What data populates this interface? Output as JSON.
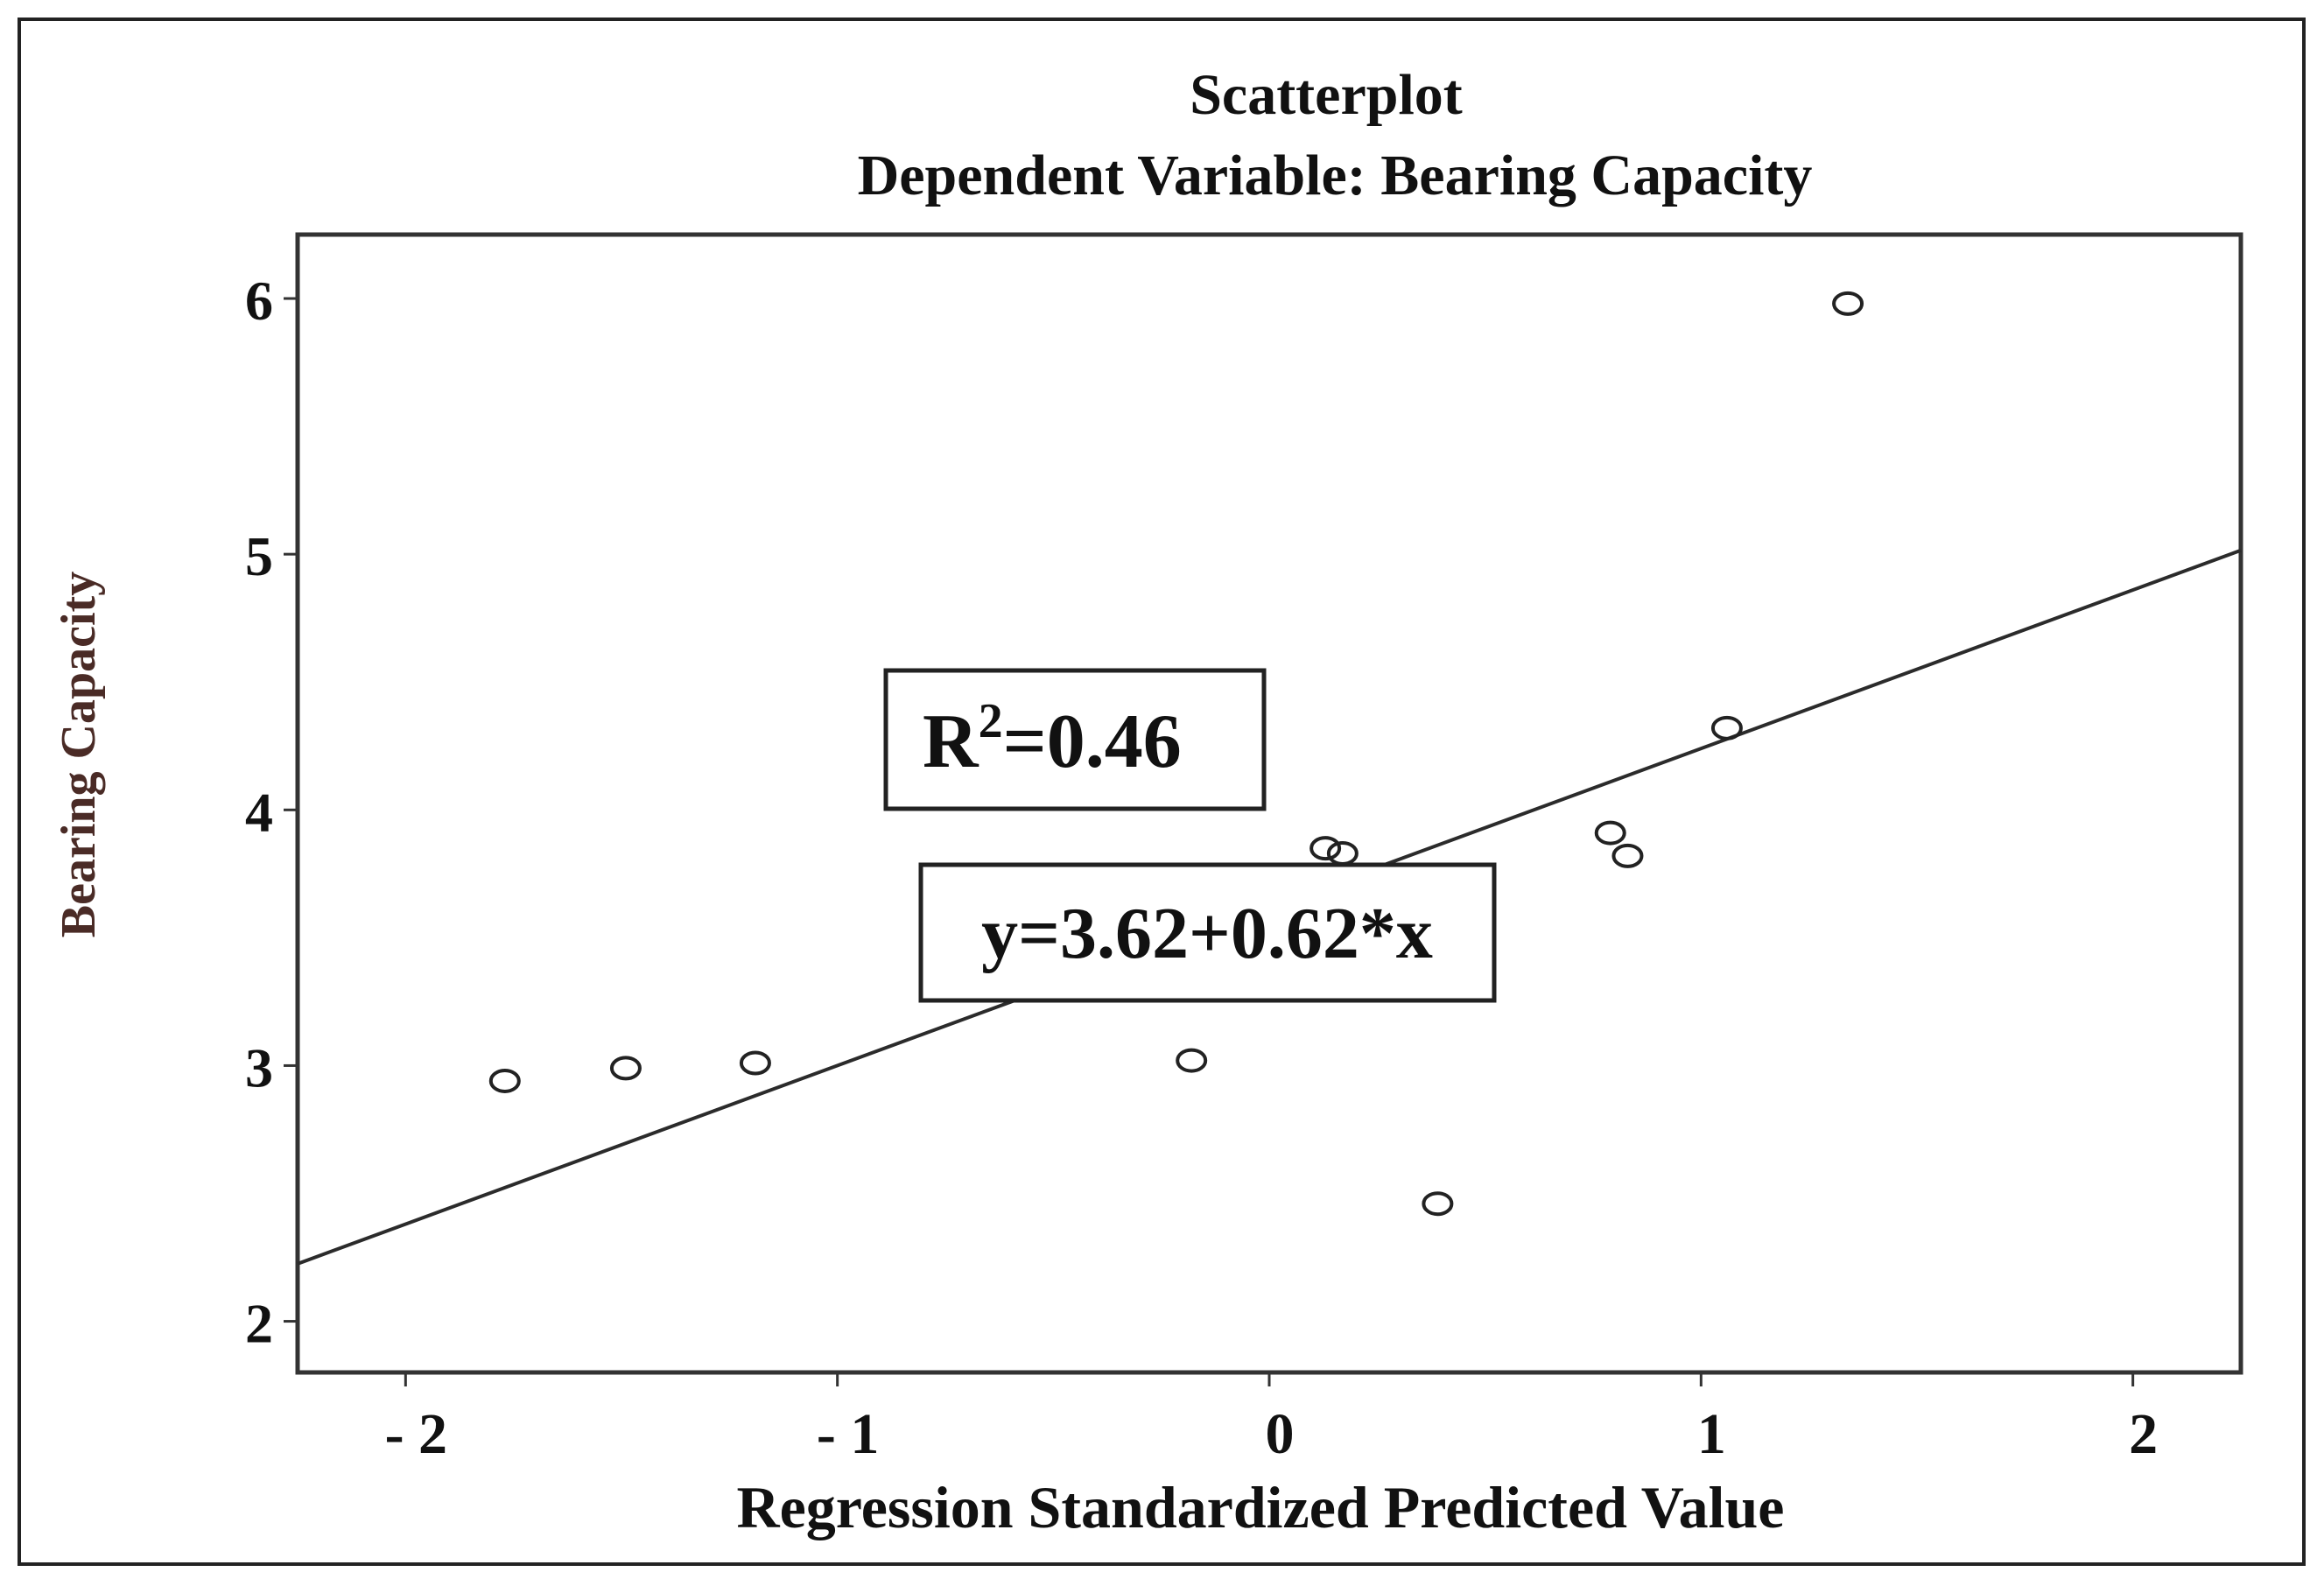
{
  "chart_data": {
    "type": "scatter",
    "title": "Scatterplot",
    "subtitle": "Dependent Variable: Bearing Capacity",
    "xlabel": "Regression Standardized Predicted Value",
    "ylabel": "Bearing Capacity",
    "xlim": [
      -2.25,
      2.25
    ],
    "ylim": [
      1.8,
      6.25
    ],
    "xticks": [
      -2,
      -1,
      0,
      1,
      2
    ],
    "xtick_labels": [
      "- 2",
      "- 1",
      "0",
      "1",
      "2"
    ],
    "yticks": [
      2,
      3,
      4,
      5,
      6
    ],
    "ytick_labels": [
      "2",
      "3",
      "4",
      "5",
      "6"
    ],
    "grid": false,
    "points": [
      {
        "x": -1.77,
        "y": 2.94
      },
      {
        "x": -1.49,
        "y": 2.99
      },
      {
        "x": -1.19,
        "y": 3.01
      },
      {
        "x": -0.18,
        "y": 3.02
      },
      {
        "x": 0.13,
        "y": 3.85
      },
      {
        "x": 0.17,
        "y": 3.83
      },
      {
        "x": 0.39,
        "y": 2.46
      },
      {
        "x": 0.79,
        "y": 3.91
      },
      {
        "x": 0.83,
        "y": 3.82
      },
      {
        "x": 1.06,
        "y": 4.32
      },
      {
        "x": 1.34,
        "y": 5.98
      }
    ],
    "fit_line": {
      "intercept": 3.62,
      "slope": 0.62
    },
    "annotations": {
      "r2_label": "R",
      "r2_sup": "2",
      "r2_value": "=0.46",
      "equation": "y=3.62+0.62*x"
    },
    "colors": {
      "line": "#2b2b2b",
      "ylabel": "#4a2b26",
      "points": "#222222"
    }
  }
}
